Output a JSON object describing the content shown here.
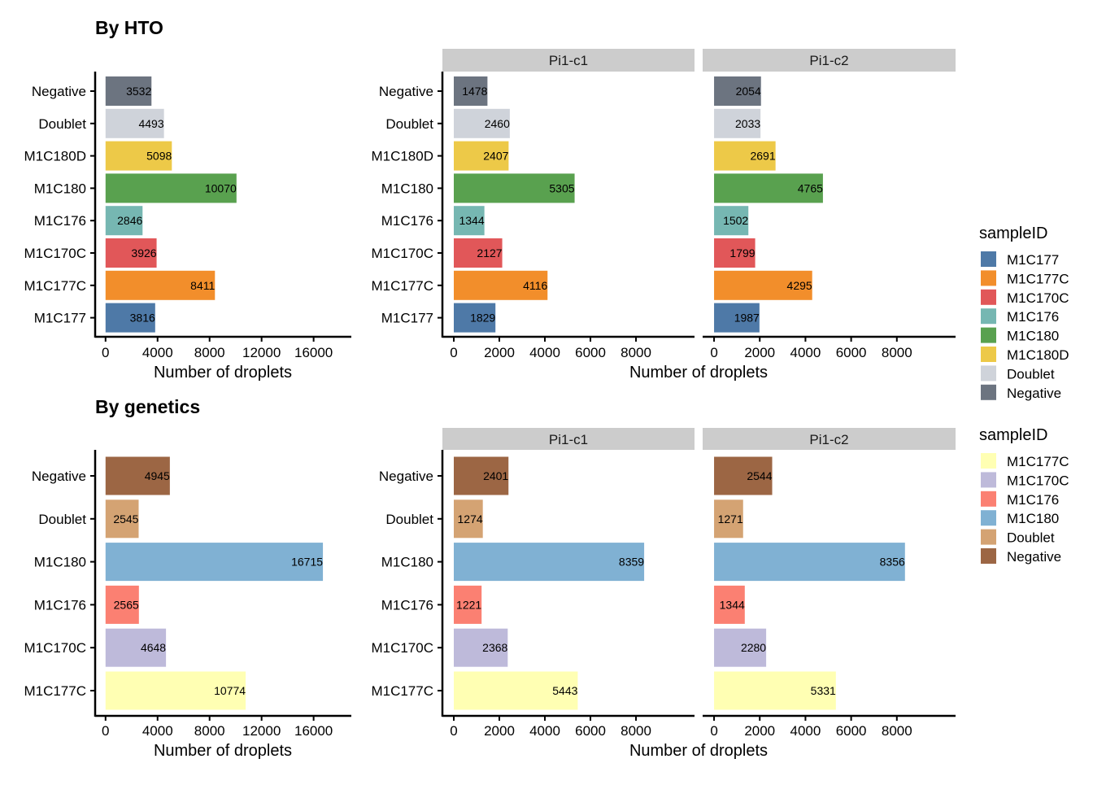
{
  "chart_data": [
    {
      "type": "bar",
      "orientation": "horizontal",
      "title": "By HTO",
      "xlabel": "Number of droplets",
      "categories": [
        "Negative",
        "Doublet",
        "M1C180D",
        "M1C180",
        "M1C176",
        "M1C170C",
        "M1C177C",
        "M1C177"
      ],
      "legend_title": "sampleID",
      "legend_placement": "right",
      "legend": [
        {
          "label": "M1C177",
          "color": "#4E79A7"
        },
        {
          "label": "M1C177C",
          "color": "#F28E2B"
        },
        {
          "label": "M1C170C",
          "color": "#E15759"
        },
        {
          "label": "M1C176",
          "color": "#76B7B2"
        },
        {
          "label": "M1C180",
          "color": "#59A14F"
        },
        {
          "label": "M1C180D",
          "color": "#EDC948"
        },
        {
          "label": "Doublet",
          "color": "#CFD3DA"
        },
        {
          "label": "Negative",
          "color": "#6C7480"
        }
      ],
      "panels": [
        {
          "facet": null,
          "values": [
            3532,
            4493,
            5098,
            10070,
            2846,
            3926,
            8411,
            3816
          ],
          "xlim": [
            -800,
            18900
          ],
          "xticks": [
            0,
            4000,
            8000,
            12000,
            16000
          ]
        },
        {
          "facet": "Pi1-c1",
          "values": [
            1478,
            2460,
            2407,
            5305,
            1344,
            2127,
            4116,
            1829
          ],
          "xlim": [
            -500,
            10570
          ],
          "xticks": [
            0,
            2000,
            4000,
            6000,
            8000
          ]
        },
        {
          "facet": "Pi1-c2",
          "values": [
            2054,
            2033,
            2691,
            4765,
            1502,
            1799,
            4295,
            1987
          ],
          "xlim": [
            -500,
            10570
          ],
          "xticks": [
            0,
            2000,
            4000,
            6000,
            8000
          ]
        }
      ]
    },
    {
      "type": "bar",
      "orientation": "horizontal",
      "title": "By genetics",
      "xlabel": "Number of droplets",
      "categories": [
        "Negative",
        "Doublet",
        "M1C180",
        "M1C176",
        "M1C170C",
        "M1C177C"
      ],
      "legend_title": "sampleID",
      "legend_placement": "right",
      "legend": [
        {
          "label": "M1C177C",
          "color": "#FFFFB3"
        },
        {
          "label": "M1C170C",
          "color": "#BEBADA"
        },
        {
          "label": "M1C176",
          "color": "#FB8072"
        },
        {
          "label": "M1C180",
          "color": "#80B1D3"
        },
        {
          "label": "Doublet",
          "color": "#D4A373"
        },
        {
          "label": "Negative",
          "color": "#9C6644"
        }
      ],
      "panels": [
        {
          "facet": null,
          "values": [
            4945,
            2545,
            16715,
            2565,
            4648,
            10774
          ],
          "xlim": [
            -800,
            18900
          ],
          "xticks": [
            0,
            4000,
            8000,
            12000,
            16000
          ]
        },
        {
          "facet": "Pi1-c1",
          "values": [
            2401,
            1274,
            8359,
            1221,
            2368,
            5443
          ],
          "xlim": [
            -500,
            10570
          ],
          "xticks": [
            0,
            2000,
            4000,
            6000,
            8000
          ]
        },
        {
          "facet": "Pi1-c2",
          "values": [
            2544,
            1271,
            8356,
            1344,
            2280,
            5331
          ],
          "xlim": [
            -500,
            10570
          ],
          "xticks": [
            0,
            2000,
            4000,
            6000,
            8000
          ]
        }
      ]
    }
  ]
}
